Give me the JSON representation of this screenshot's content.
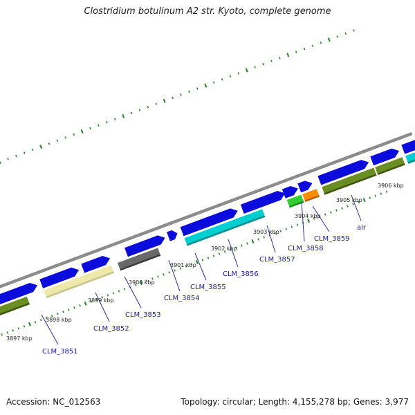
{
  "header": {
    "title": "Clostridium botulinum A2 str. Kyoto, complete genome"
  },
  "footer": {
    "accession": "Accession: NC_012563",
    "summary": "Topology: circular; Length: 4,155,278 bp; Genes: 3,977"
  },
  "map": {
    "backbone_color": "#8c8c8c",
    "tick_color": "#2e8b2e",
    "scale_labels": [
      "3897 kbp",
      "3898 kbp",
      "3899 kbp",
      "3900 kbp",
      "3901 kbp",
      "3902 kbp",
      "3903 kbp",
      "3904 kbp",
      "3905 kbp",
      "3906 kbp"
    ],
    "gene_labels": [
      "CLM_3851",
      "CLM_3852",
      "CLM_3853",
      "CLM_3854",
      "CLM_3855",
      "CLM_3856",
      "CLM_3857",
      "CLM_3858",
      "CLM_3859",
      "alr"
    ],
    "colors": {
      "cds": "#0b0bdc",
      "olive": "#6b8e23",
      "khaki": "#eee8aa",
      "gray": "#696969",
      "cyan": "#00cfd1",
      "green": "#33cc33",
      "orange": "#ff8c00"
    }
  }
}
